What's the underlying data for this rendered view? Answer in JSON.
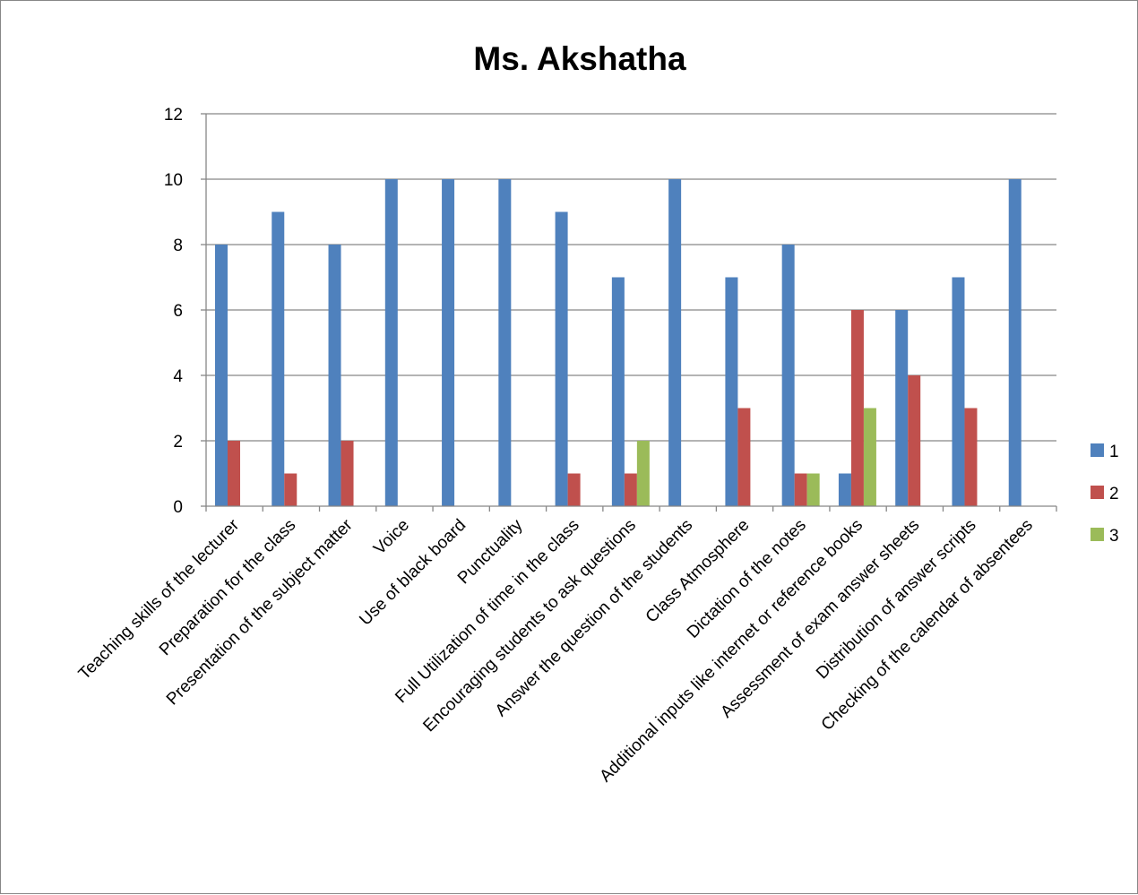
{
  "chart_data": {
    "type": "bar",
    "title": "Ms. Akshatha",
    "xlabel": "",
    "ylabel": "",
    "ylim": [
      0,
      12
    ],
    "yticks": [
      0,
      2,
      4,
      6,
      8,
      10,
      12
    ],
    "grid": true,
    "legend_position": "right",
    "categories": [
      "Teaching skills of the lecturer",
      "Preparation for the class",
      "Presentation of the subject matter",
      "Voice",
      "Use of black board",
      "Punctuality",
      "Full Utilization of time in the class",
      "Encouraging students to ask questions",
      "Answer the question of the students",
      "Class Atmosphere",
      "Dictation of the notes",
      "Additional inputs like internet or reference books",
      "Assessment of exam answer sheets",
      "Distribution of answer scripts",
      "Checking of the calendar of absentees"
    ],
    "series": [
      {
        "name": "1",
        "color": "#4F81BD",
        "values": [
          8,
          9,
          8,
          10,
          10,
          10,
          9,
          7,
          10,
          7,
          8,
          1,
          6,
          7,
          10
        ]
      },
      {
        "name": "2",
        "color": "#C0504D",
        "values": [
          2,
          1,
          2,
          0,
          0,
          0,
          1,
          1,
          0,
          3,
          1,
          6,
          4,
          3,
          0
        ]
      },
      {
        "name": "3",
        "color": "#9BBB59",
        "values": [
          0,
          0,
          0,
          0,
          0,
          0,
          0,
          2,
          0,
          0,
          1,
          3,
          0,
          0,
          0
        ]
      }
    ]
  }
}
